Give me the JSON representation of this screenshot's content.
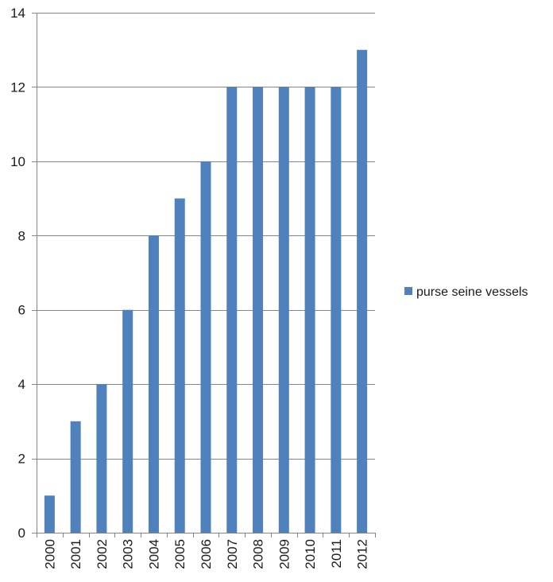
{
  "chart_data": {
    "type": "bar",
    "categories": [
      "2000",
      "2001",
      "2002",
      "2003",
      "2004",
      "2005",
      "2006",
      "2007",
      "2008",
      "2009",
      "2010",
      "2011",
      "2012"
    ],
    "series": [
      {
        "name": "purse seine vessels",
        "values": [
          1,
          3,
          4,
          6,
          8,
          9,
          10,
          12,
          12,
          12,
          12,
          12,
          13
        ],
        "color": "#4F81BD"
      }
    ],
    "title": "",
    "xlabel": "",
    "ylabel": "",
    "ylim": [
      0,
      14
    ],
    "yticks": [
      0,
      2,
      4,
      6,
      8,
      10,
      12,
      14
    ],
    "grid": true,
    "legend_position": "right",
    "gridline_color": "#868686"
  }
}
